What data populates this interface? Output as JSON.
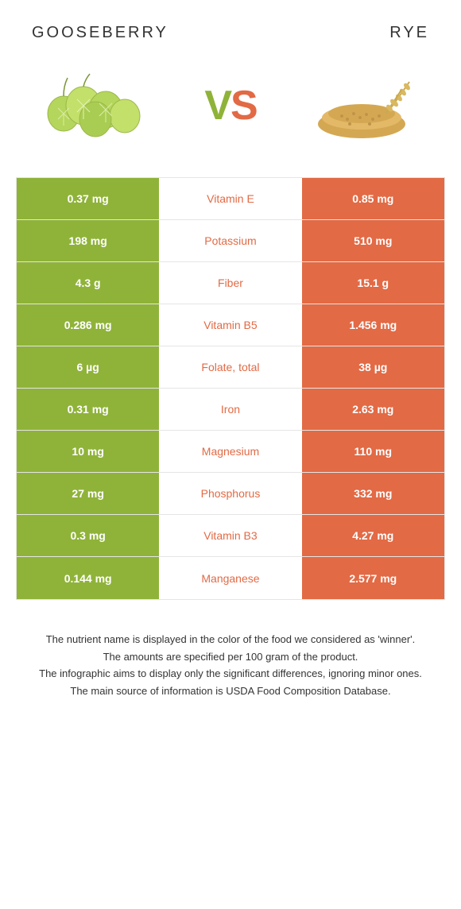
{
  "header": {
    "left_title": "GOOSEBERRY",
    "right_title": "RYE"
  },
  "vs": {
    "v": "V",
    "s": "S"
  },
  "colors": {
    "left": "#8fb339",
    "right": "#e26a45",
    "border": "#e5e5e5",
    "text": "#333333",
    "white": "#ffffff"
  },
  "rows": [
    {
      "left": "0.37 mg",
      "nutrient": "Vitamin E",
      "right": "0.85 mg",
      "winner": "right"
    },
    {
      "left": "198 mg",
      "nutrient": "Potassium",
      "right": "510 mg",
      "winner": "right"
    },
    {
      "left": "4.3 g",
      "nutrient": "Fiber",
      "right": "15.1 g",
      "winner": "right"
    },
    {
      "left": "0.286 mg",
      "nutrient": "Vitamin B5",
      "right": "1.456 mg",
      "winner": "right"
    },
    {
      "left": "6 µg",
      "nutrient": "Folate, total",
      "right": "38 µg",
      "winner": "right"
    },
    {
      "left": "0.31 mg",
      "nutrient": "Iron",
      "right": "2.63 mg",
      "winner": "right"
    },
    {
      "left": "10 mg",
      "nutrient": "Magnesium",
      "right": "110 mg",
      "winner": "right"
    },
    {
      "left": "27 mg",
      "nutrient": "Phosphorus",
      "right": "332 mg",
      "winner": "right"
    },
    {
      "left": "0.3 mg",
      "nutrient": "Vitamin B3",
      "right": "4.27 mg",
      "winner": "right"
    },
    {
      "left": "0.144 mg",
      "nutrient": "Manganese",
      "right": "2.577 mg",
      "winner": "right"
    }
  ],
  "footer": {
    "line1": "The nutrient name is displayed in the color of the food we considered as 'winner'.",
    "line2": "The amounts are specified per 100 gram of the product.",
    "line3": "The infographic aims to display only the significant differences, ignoring minor ones.",
    "line4": "The main source of information is USDA Food Composition Database."
  }
}
